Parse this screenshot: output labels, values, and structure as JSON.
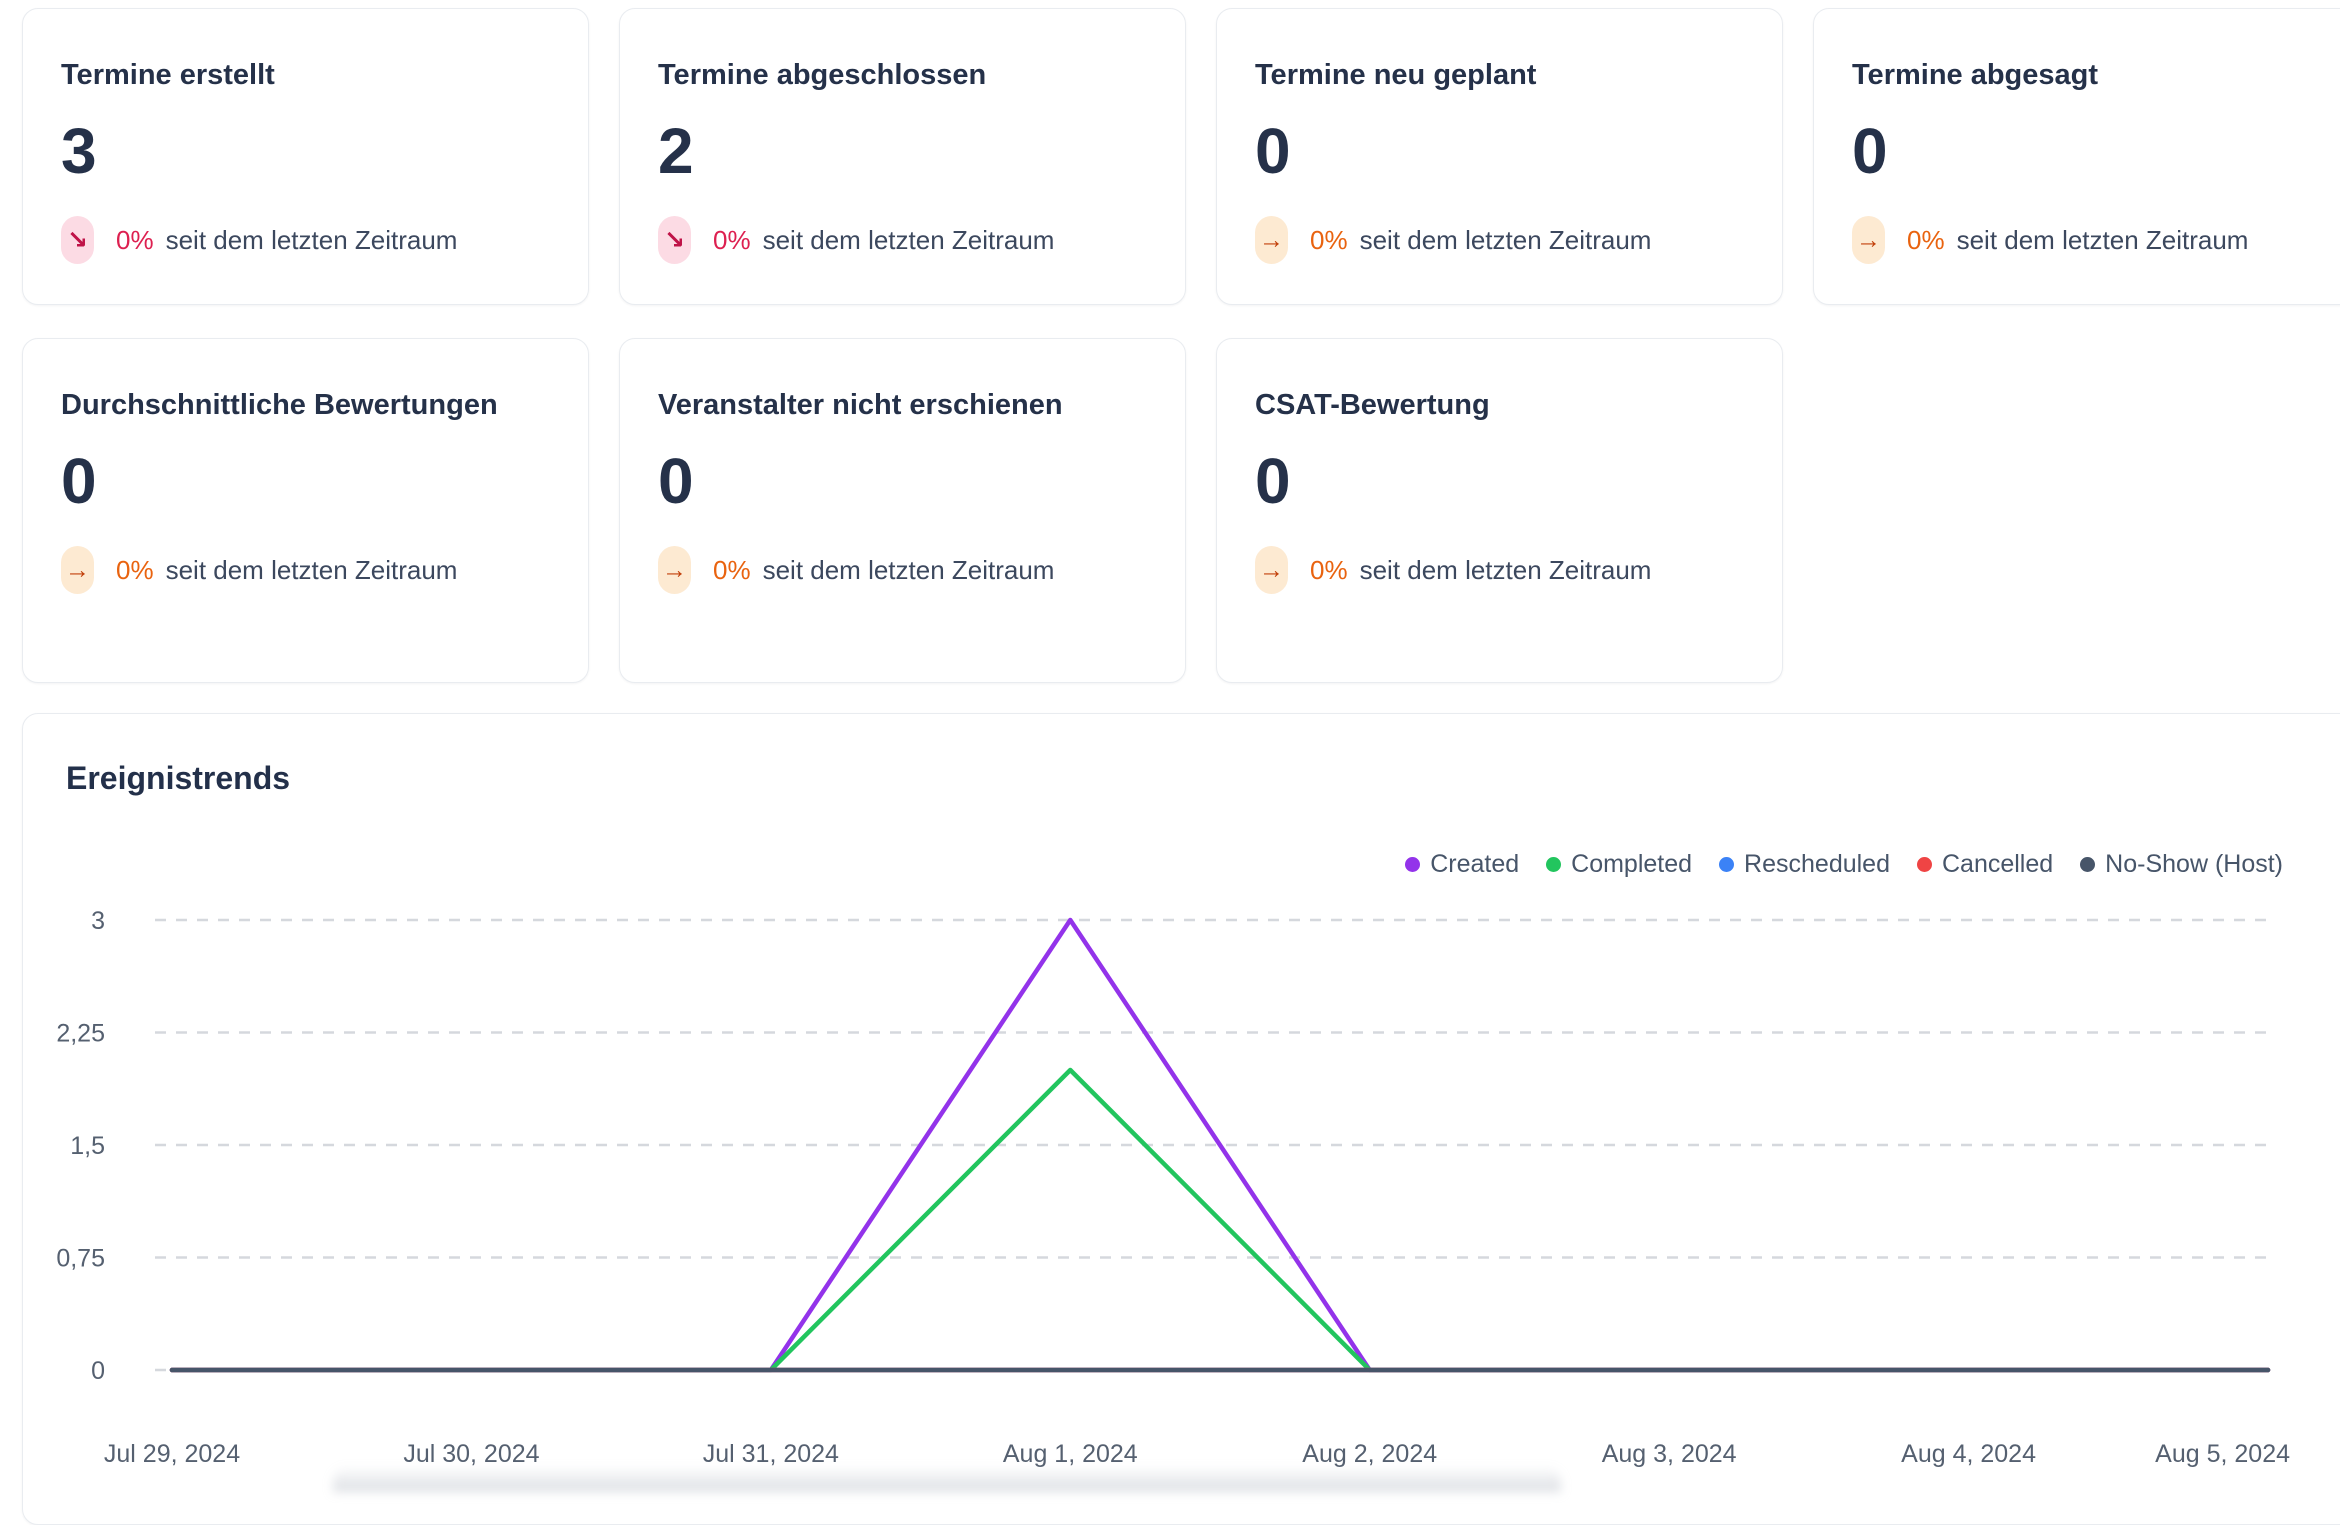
{
  "cards": [
    {
      "title": "Termine erstellt",
      "value": "3",
      "arrow": "↘",
      "delta": "0%",
      "caption": "seit dem letzten Zeitraum",
      "tone": "down"
    },
    {
      "title": "Termine abgeschlossen",
      "value": "2",
      "arrow": "↘",
      "delta": "0%",
      "caption": "seit dem letzten Zeitraum",
      "tone": "down"
    },
    {
      "title": "Termine neu geplant",
      "value": "0",
      "arrow": "→",
      "delta": "0%",
      "caption": "seit dem letzten Zeitraum",
      "tone": "flat"
    },
    {
      "title": "Termine abgesagt",
      "value": "0",
      "arrow": "→",
      "delta": "0%",
      "caption": "seit dem letzten Zeitraum",
      "tone": "flat"
    },
    {
      "title": "Durchschnittliche Bewertungen",
      "value": "0",
      "arrow": "→",
      "delta": "0%",
      "caption": "seit dem letzten Zeitraum",
      "tone": "flat"
    },
    {
      "title": "Veranstalter nicht erschienen",
      "value": "0",
      "arrow": "→",
      "delta": "0%",
      "caption": "seit dem letzten Zeitraum",
      "tone": "flat"
    },
    {
      "title": "CSAT-Bewertung",
      "value": "0",
      "arrow": "→",
      "delta": "0%",
      "caption": "seit dem letzten Zeitraum",
      "tone": "flat"
    }
  ],
  "chart_data": {
    "type": "line",
    "title": "Ereignistrends",
    "x": [
      "Jul 29, 2024",
      "Jul 30, 2024",
      "Jul 31, 2024",
      "Aug 1, 2024",
      "Aug 2, 2024",
      "Aug 3, 2024",
      "Aug 4, 2024",
      "Aug 5, 2024"
    ],
    "series": [
      {
        "name": "Created",
        "color": "#9333ea",
        "values": [
          0,
          0,
          0,
          3,
          0,
          0,
          0,
          0
        ]
      },
      {
        "name": "Completed",
        "color": "#22c55e",
        "values": [
          0,
          0,
          0,
          2,
          0,
          0,
          0,
          0
        ]
      },
      {
        "name": "Rescheduled",
        "color": "#3b82f6",
        "values": [
          0,
          0,
          0,
          0,
          0,
          0,
          0,
          0
        ]
      },
      {
        "name": "Cancelled",
        "color": "#ef4444",
        "values": [
          0,
          0,
          0,
          0,
          0,
          0,
          0,
          0
        ]
      },
      {
        "name": "No-Show (Host)",
        "color": "#475569",
        "values": [
          0,
          0,
          0,
          0,
          0,
          0,
          0,
          0
        ]
      }
    ],
    "ylim": [
      0,
      3
    ],
    "yticks": [
      {
        "v": 0,
        "label": "0"
      },
      {
        "v": 0.75,
        "label": "0,75"
      },
      {
        "v": 1.5,
        "label": "1,5"
      },
      {
        "v": 2.25,
        "label": "2,25"
      },
      {
        "v": 3,
        "label": "3"
      }
    ],
    "grid": "horizontal-dashed",
    "legend_position": "top-right"
  },
  "colors": {
    "badge_red_bg": "#fcdbe4",
    "badge_red_text": "#dd2050",
    "badge_red_arrow": "#bf1348",
    "badge_orange_bg": "#fdead2",
    "badge_orange_text": "#e9630f",
    "badge_orange_arrow": "#c2410c",
    "axis_text": "#556070",
    "grid_line": "#d5d8dd",
    "baseline": "#475569"
  }
}
